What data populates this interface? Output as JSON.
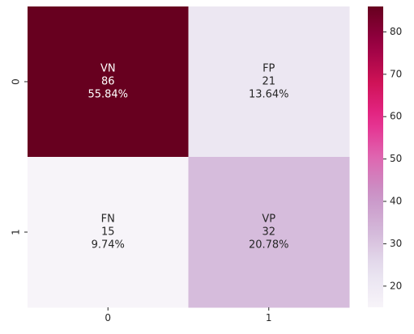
{
  "chart_data": {
    "type": "heatmap",
    "title": "",
    "xlabel": "",
    "ylabel": "",
    "x_tick_labels": [
      "0",
      "1"
    ],
    "y_tick_labels": [
      "0",
      "1"
    ],
    "cells": [
      [
        {
          "label": "VN",
          "count": 86,
          "count_text": "86",
          "percent_text": "55.84%",
          "value": 86
        },
        {
          "label": "FP",
          "count": 21,
          "count_text": "21",
          "percent_text": "13.64%",
          "value": 21
        }
      ],
      [
        {
          "label": "FN",
          "count": 15,
          "count_text": "15",
          "percent_text": "9.74%",
          "value": 15
        },
        {
          "label": "VP",
          "count": 32,
          "count_text": "32",
          "percent_text": "20.78%",
          "value": 32
        }
      ]
    ],
    "colormap": "PuRd",
    "colorbar": {
      "range": [
        15,
        86
      ],
      "ticks": [
        20,
        30,
        40,
        50,
        60,
        70,
        80
      ],
      "tick_labels": [
        "20",
        "30",
        "40",
        "50",
        "60",
        "70",
        "80"
      ]
    },
    "colors": {
      "cell_dark_text": "#262626",
      "cell_light_text": "#ffffff",
      "axis_text": "#262626"
    }
  }
}
